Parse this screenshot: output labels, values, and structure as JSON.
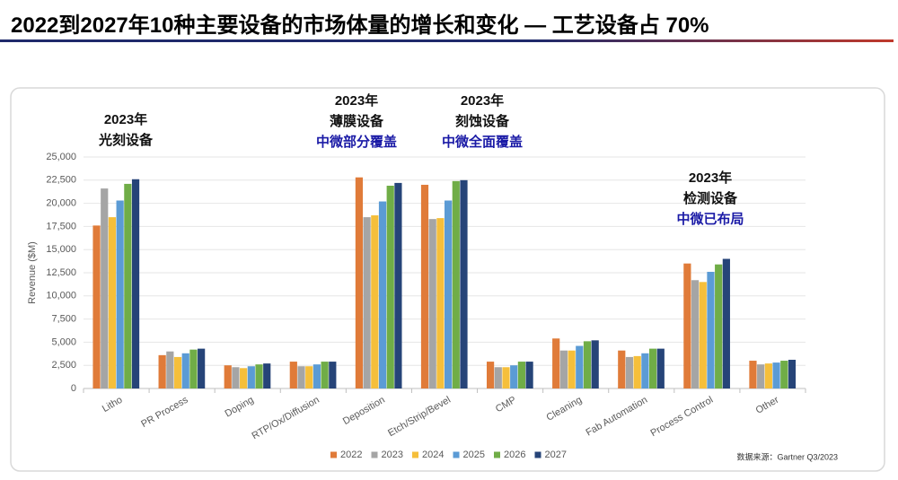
{
  "header": {
    "title": "2022到2027年10种主要设备的市场体量的增长和变化 — 工艺设备占 70%"
  },
  "chart_data": {
    "type": "bar",
    "y_label": "Revenue ($M)",
    "source": "数据来源：Gartner Q3/2023",
    "categories": [
      "Litho",
      "PR Process",
      "Doping",
      "RTP/Ox/Diffusion",
      "Deposition",
      "Etch/Strip/Bevel",
      "CMP",
      "Cleaning",
      "Fab Automation",
      "Process Control",
      "Other"
    ],
    "series": [
      {
        "name": "2022",
        "color": "#e07b39",
        "values": [
          17600,
          3600,
          2500,
          2900,
          22800,
          22000,
          2900,
          5400,
          4100,
          13500,
          3000
        ]
      },
      {
        "name": "2023",
        "color": "#a5a5a5",
        "values": [
          21600,
          4000,
          2300,
          2400,
          18500,
          18300,
          2300,
          4100,
          3400,
          11700,
          2600
        ]
      },
      {
        "name": "2024",
        "color": "#f5bf3b",
        "values": [
          18500,
          3400,
          2200,
          2400,
          18700,
          18400,
          2300,
          4100,
          3500,
          11500,
          2700
        ]
      },
      {
        "name": "2025",
        "color": "#5b9bd5",
        "values": [
          20300,
          3800,
          2400,
          2600,
          20200,
          20300,
          2500,
          4600,
          3800,
          12600,
          2800
        ]
      },
      {
        "name": "2026",
        "color": "#70ad47",
        "values": [
          22100,
          4200,
          2600,
          2900,
          21900,
          22400,
          2900,
          5100,
          4300,
          13400,
          3000
        ]
      },
      {
        "name": "2027",
        "color": "#264478",
        "values": [
          22600,
          4300,
          2700,
          2900,
          22200,
          22500,
          2900,
          5200,
          4300,
          14000,
          3100
        ]
      }
    ],
    "ylim": [
      0,
      25000
    ],
    "yticks": [
      0,
      {
        "value": 2500,
        "label": "2,500"
      },
      {
        "value": 5000,
        "label": "5,000"
      },
      {
        "value": 7500,
        "label": "7,500"
      },
      {
        "value": 10000,
        "label": "10,000"
      },
      {
        "value": 12500,
        "label": "12,500"
      },
      {
        "value": 15000,
        "label": "15,000"
      },
      {
        "value": 17500,
        "label": "17,500"
      },
      {
        "value": 20000,
        "label": "20,000"
      },
      {
        "value": 22500,
        "label": "22,500"
      },
      {
        "value": 25000,
        "label": "25,000"
      }
    ],
    "annotations": [
      {
        "lines": [
          "2023年",
          "光刻设备"
        ]
      },
      {
        "lines": [
          "2023年",
          "薄膜设备",
          "中微部分覆盖"
        ]
      },
      {
        "lines": [
          "2023年",
          "刻蚀设备",
          "中微全面覆盖"
        ]
      },
      {
        "lines": [
          "2023年",
          "检测设备",
          "中微已布局"
        ]
      }
    ]
  }
}
